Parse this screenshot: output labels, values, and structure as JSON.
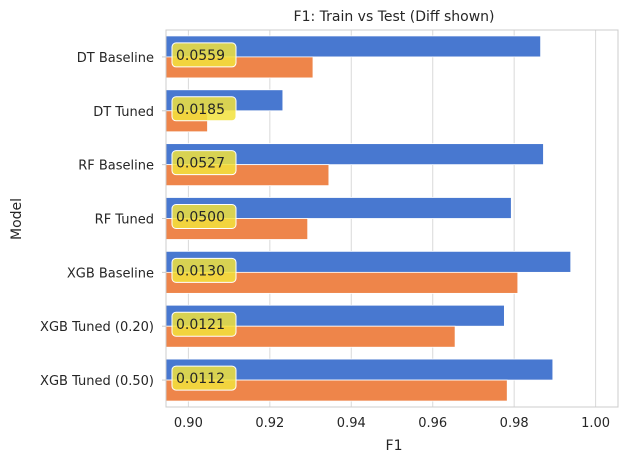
{
  "chart_data": {
    "type": "bar",
    "orientation": "horizontal",
    "title": "F1: Train vs Test (Diff shown)",
    "xlabel": "F1",
    "ylabel": "Model",
    "xlim": [
      0.8945,
      1.0055
    ],
    "x_ticks": [
      "0.90",
      "0.92",
      "0.94",
      "0.96",
      "0.98",
      "1.00"
    ],
    "x_tick_values": [
      0.9,
      0.92,
      0.94,
      0.96,
      0.98,
      1.0
    ],
    "grid": true,
    "legend": "none",
    "categories": [
      "DT Baseline",
      "DT Tuned",
      "RF Baseline",
      "RF Tuned",
      "XGB Baseline",
      "XGB Tuned (0.20)",
      "XGB Tuned (0.50)"
    ],
    "series": [
      {
        "color": "#4878d0",
        "values": [
          0.9865,
          0.9232,
          0.9872,
          0.9793,
          0.9939,
          0.9776,
          0.9895
        ]
      },
      {
        "color": "#ee854a",
        "values": [
          0.9306,
          0.9047,
          0.9345,
          0.9293,
          0.9809,
          0.9655,
          0.9783
        ]
      }
    ],
    "annotations": [
      "0.0559",
      "0.0185",
      "0.0527",
      "0.0500",
      "0.0130",
      "0.0121",
      "0.0112"
    ],
    "annotation_box_color": "#f2e23c"
  }
}
